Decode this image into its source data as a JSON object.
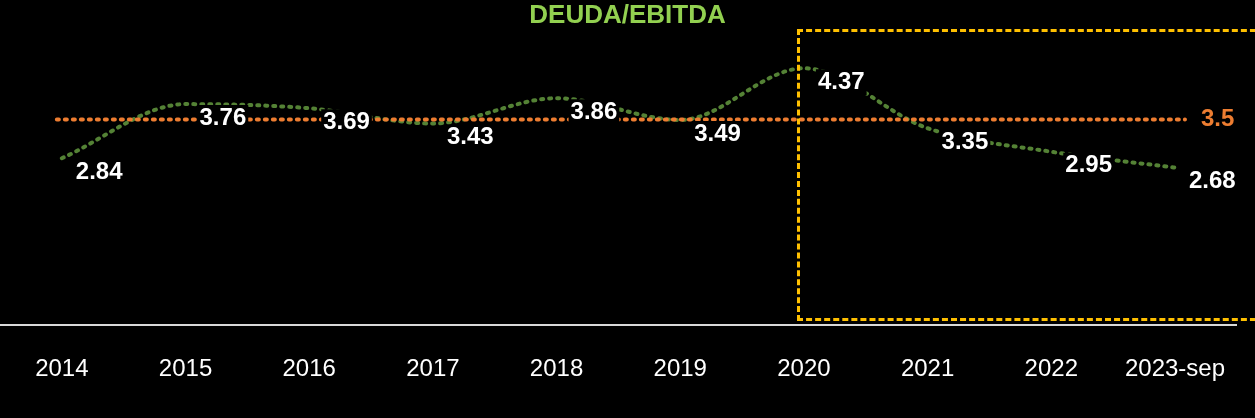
{
  "chart_data": {
    "type": "line",
    "title": "DEUDA/EBITDA",
    "categories": [
      "2014",
      "2015",
      "2016",
      "2017",
      "2018",
      "2019",
      "2020",
      "2021",
      "2022",
      "2023-sep"
    ],
    "series": [
      {
        "color": "#548235",
        "values": [
          2.84,
          3.76,
          3.69,
          3.43,
          3.86,
          3.49,
          4.37,
          3.35,
          2.95,
          2.68
        ]
      }
    ],
    "data_labels": true,
    "ref_lines": [
      {
        "axis": "y",
        "value": 3.5,
        "label": "3.5",
        "color": "#ed7d31",
        "line_style": "dotted"
      }
    ],
    "line_style": "dotted",
    "marker": "none",
    "grid": false,
    "legend": false,
    "tick_labels": "x"
  }
}
